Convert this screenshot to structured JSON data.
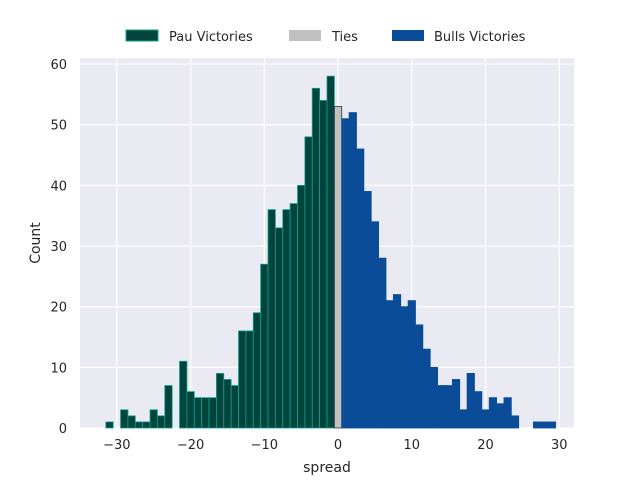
{
  "chart_data": {
    "type": "bar",
    "xlabel": "spread",
    "ylabel": "Count",
    "xlim": [
      -35,
      32
    ],
    "ylim": [
      0,
      61
    ],
    "x_ticks": [
      -30,
      -20,
      -10,
      0,
      10,
      20,
      30
    ],
    "y_ticks": [
      0,
      10,
      20,
      30,
      40,
      50,
      60
    ],
    "grid": true,
    "legend_placement": "top-center",
    "series": [
      {
        "name": "Pau Victories",
        "color": "#00443c",
        "edge_color": "#10a090",
        "x": [
          -31,
          -29,
          -28,
          -27,
          -26,
          -25,
          -24,
          -23,
          -21,
          -20,
          -19,
          -18,
          -17,
          -16,
          -15,
          -14,
          -13,
          -12,
          -11,
          -10,
          -9,
          -8,
          -7,
          -6,
          -5,
          -4,
          -3,
          -2,
          -1
        ],
        "values": [
          1,
          3,
          2,
          1,
          1,
          3,
          2,
          7,
          11,
          6,
          5,
          5,
          5,
          9,
          8,
          7,
          16,
          16,
          19,
          27,
          36,
          33,
          36,
          37,
          40,
          48,
          56,
          54,
          58
        ]
      },
      {
        "name": "Ties",
        "color": "#c0c0c0",
        "edge_color": "#333333",
        "x": [
          0
        ],
        "values": [
          53
        ]
      },
      {
        "name": "Bulls Victories",
        "color": "#0a4c98",
        "edge_color": "#0a4c98",
        "x": [
          1,
          2,
          3,
          4,
          5,
          6,
          7,
          8,
          9,
          10,
          11,
          12,
          13,
          14,
          15,
          16,
          17,
          18,
          19,
          20,
          21,
          22,
          23,
          24,
          27,
          28,
          29
        ],
        "values": [
          51,
          52,
          46,
          39,
          34,
          28,
          21,
          22,
          20,
          21,
          17,
          13,
          10,
          7,
          7,
          8,
          3,
          9,
          6,
          3,
          5,
          4,
          5,
          2,
          1,
          1,
          1
        ]
      }
    ],
    "bin_width": 1
  }
}
